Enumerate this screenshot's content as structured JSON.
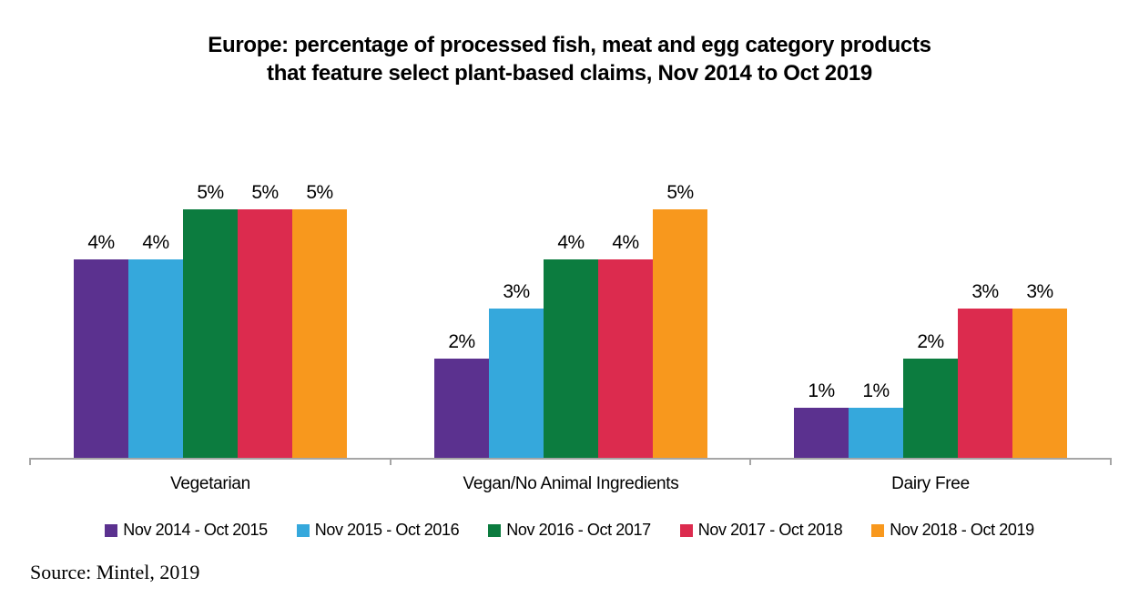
{
  "chart_data": {
    "type": "bar",
    "title": "Europe: percentage of processed fish, meat and egg category products that feature select plant-based claims, Nov 2014 to Oct 2019",
    "categories": [
      "Vegetarian",
      "Vegan/No Animal Ingredients",
      "Dairy Free"
    ],
    "series": [
      {
        "name": "Nov 2014 - Oct 2015",
        "color": "#5b318f",
        "values": [
          4,
          2,
          1
        ]
      },
      {
        "name": "Nov 2015 - Oct 2016",
        "color": "#35a8dc",
        "values": [
          4,
          3,
          1
        ]
      },
      {
        "name": "Nov 2016 - Oct 2017",
        "color": "#0c7c3f",
        "values": [
          5,
          4,
          2
        ]
      },
      {
        "name": "Nov 2017 - Oct 2018",
        "color": "#dc2b4e",
        "values": [
          5,
          4,
          3
        ]
      },
      {
        "name": "Nov 2018 - Oct 2019",
        "color": "#f8981d",
        "values": [
          5,
          5,
          3
        ]
      }
    ],
    "value_suffix": "%",
    "ylim": [
      0,
      5.5
    ],
    "grid": false,
    "legend_position": "bottom",
    "axis_color": "#a6a6a6",
    "source": "Source: Mintel, 2019"
  }
}
